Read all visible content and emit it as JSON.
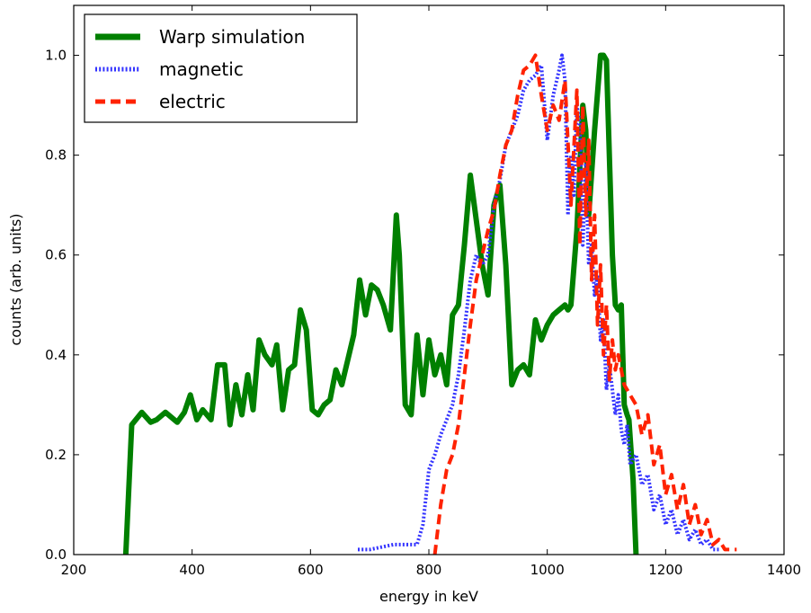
{
  "chart_data": {
    "type": "line",
    "title": "",
    "xlabel": "energy in keV",
    "ylabel": "counts (arb. units)",
    "xlim": [
      200,
      1400
    ],
    "ylim": [
      0.0,
      1.1
    ],
    "xticks": [
      "200",
      "400",
      "600",
      "800",
      "1000",
      "1200",
      "1400"
    ],
    "yticks": [
      "0.0",
      "0.2",
      "0.4",
      "0.6",
      "0.8",
      "1.0"
    ],
    "grid": false,
    "legend_position": "top-left",
    "series": [
      {
        "name": "Warp simulation",
        "color": "#008000",
        "style": "solid",
        "x": [
          288,
          298,
          315,
          330,
          340,
          355,
          375,
          387,
          397,
          408,
          418,
          432,
          443,
          455,
          464,
          474,
          484,
          494,
          503,
          513,
          523,
          535,
          543,
          553,
          563,
          573,
          583,
          593,
          603,
          613,
          623,
          633,
          643,
          653,
          663,
          673,
          683,
          693,
          703,
          713,
          723,
          735,
          745,
          750,
          760,
          770,
          780,
          790,
          800,
          810,
          820,
          830,
          840,
          850,
          860,
          870,
          880,
          890,
          900,
          910,
          920,
          930,
          940,
          950,
          960,
          970,
          980,
          990,
          1000,
          1010,
          1020,
          1030,
          1035,
          1040,
          1050,
          1060,
          1065,
          1070,
          1080,
          1090,
          1095,
          1100,
          1110,
          1115,
          1120,
          1125,
          1130,
          1135,
          1138,
          1145,
          1150
        ],
        "y": [
          0.0,
          0.26,
          0.285,
          0.265,
          0.27,
          0.285,
          0.265,
          0.285,
          0.32,
          0.27,
          0.29,
          0.27,
          0.38,
          0.38,
          0.26,
          0.34,
          0.28,
          0.36,
          0.29,
          0.43,
          0.4,
          0.38,
          0.42,
          0.29,
          0.37,
          0.38,
          0.49,
          0.45,
          0.29,
          0.28,
          0.3,
          0.31,
          0.37,
          0.34,
          0.39,
          0.44,
          0.55,
          0.48,
          0.54,
          0.53,
          0.5,
          0.45,
          0.68,
          0.6,
          0.3,
          0.28,
          0.44,
          0.32,
          0.43,
          0.36,
          0.4,
          0.34,
          0.48,
          0.5,
          0.62,
          0.76,
          0.67,
          0.58,
          0.52,
          0.7,
          0.74,
          0.58,
          0.34,
          0.37,
          0.38,
          0.36,
          0.47,
          0.43,
          0.46,
          0.48,
          0.49,
          0.5,
          0.49,
          0.5,
          0.65,
          0.9,
          0.85,
          0.68,
          0.85,
          1.0,
          1.0,
          0.99,
          0.6,
          0.5,
          0.49,
          0.5,
          0.3,
          0.28,
          0.27,
          0.15,
          0.0
        ]
      },
      {
        "name": "magnetic",
        "color": "#3333ff",
        "style": "dotted",
        "x": [
          680,
          700,
          720,
          740,
          760,
          780,
          790,
          800,
          810,
          820,
          830,
          840,
          850,
          860,
          870,
          880,
          890,
          900,
          910,
          920,
          930,
          940,
          950,
          960,
          970,
          980,
          990,
          1000,
          1010,
          1020,
          1025,
          1030,
          1035,
          1040,
          1045,
          1050,
          1055,
          1060,
          1065,
          1070,
          1075,
          1080,
          1085,
          1090,
          1095,
          1100,
          1105,
          1110,
          1115,
          1120,
          1125,
          1130,
          1135,
          1140,
          1150,
          1160,
          1170,
          1180,
          1190,
          1200,
          1210,
          1220,
          1230,
          1240,
          1250,
          1260,
          1270,
          1280,
          1290
        ],
        "y": [
          0.01,
          0.01,
          0.015,
          0.02,
          0.02,
          0.02,
          0.06,
          0.17,
          0.2,
          0.24,
          0.27,
          0.3,
          0.36,
          0.45,
          0.55,
          0.6,
          0.58,
          0.6,
          0.7,
          0.75,
          0.82,
          0.85,
          0.88,
          0.93,
          0.95,
          0.96,
          0.98,
          0.83,
          0.92,
          0.97,
          1.0,
          0.95,
          0.68,
          0.8,
          0.72,
          0.9,
          0.86,
          0.62,
          0.78,
          0.58,
          0.62,
          0.52,
          0.56,
          0.43,
          0.47,
          0.33,
          0.38,
          0.33,
          0.28,
          0.32,
          0.25,
          0.22,
          0.26,
          0.18,
          0.2,
          0.14,
          0.16,
          0.09,
          0.12,
          0.06,
          0.09,
          0.04,
          0.07,
          0.03,
          0.05,
          0.02,
          0.03,
          0.01,
          0.01
        ]
      },
      {
        "name": "electric",
        "color": "#ff2200",
        "style": "dashed",
        "x": [
          810,
          820,
          830,
          840,
          850,
          860,
          870,
          880,
          890,
          900,
          910,
          920,
          930,
          940,
          950,
          960,
          970,
          980,
          990,
          1000,
          1010,
          1020,
          1030,
          1040,
          1050,
          1055,
          1060,
          1065,
          1070,
          1075,
          1080,
          1085,
          1090,
          1095,
          1100,
          1105,
          1110,
          1115,
          1120,
          1130,
          1140,
          1150,
          1160,
          1170,
          1180,
          1190,
          1200,
          1210,
          1220,
          1230,
          1240,
          1250,
          1260,
          1270,
          1280,
          1290,
          1300,
          1320
        ],
        "y": [
          0.0,
          0.1,
          0.17,
          0.2,
          0.26,
          0.36,
          0.46,
          0.55,
          0.6,
          0.65,
          0.69,
          0.76,
          0.82,
          0.85,
          0.92,
          0.97,
          0.98,
          1.0,
          0.92,
          0.85,
          0.9,
          0.87,
          0.95,
          0.7,
          0.93,
          0.62,
          0.9,
          0.68,
          0.83,
          0.55,
          0.68,
          0.46,
          0.58,
          0.4,
          0.5,
          0.35,
          0.43,
          0.37,
          0.4,
          0.34,
          0.32,
          0.3,
          0.24,
          0.28,
          0.18,
          0.22,
          0.12,
          0.16,
          0.09,
          0.14,
          0.06,
          0.1,
          0.04,
          0.07,
          0.02,
          0.03,
          0.01,
          0.01
        ]
      }
    ]
  }
}
